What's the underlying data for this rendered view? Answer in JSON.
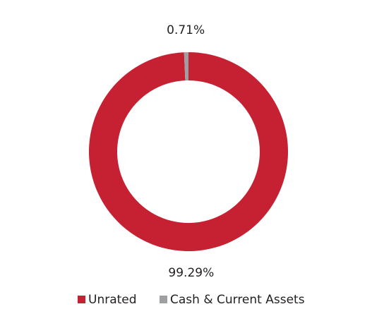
{
  "chart_data": {
    "type": "donut",
    "categories": [
      "Unrated",
      "Cash & Current Assets"
    ],
    "values": [
      99.29,
      0.71
    ],
    "value_labels": [
      "99.29%",
      "0.71%"
    ],
    "colors": [
      "#c62033",
      "#9d9fa2"
    ]
  }
}
